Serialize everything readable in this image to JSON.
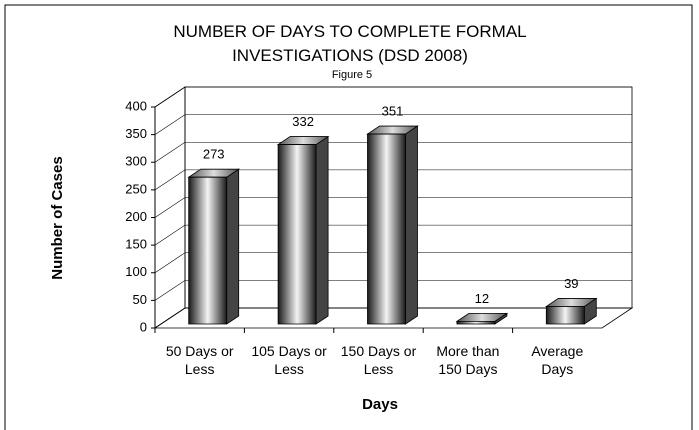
{
  "chart_data": {
    "type": "bar3d",
    "title": "NUMBER OF DAYS TO COMPLETE FORMAL INVESTIGATIONS (DSD 2008)",
    "subtitle": "Figure 5",
    "x_label": "Days",
    "y_label": "Number of Cases",
    "categories": [
      "50 Days or Less",
      "105 Days or Less",
      "150 Days or Less",
      "More than 150 Days",
      "Average Days"
    ],
    "values": [
      273,
      332,
      351,
      12,
      39
    ],
    "color": "#444444",
    "ylim": [
      0,
      400
    ],
    "yticks": [
      0,
      50,
      100,
      150,
      200,
      250,
      300,
      350,
      400
    ],
    "grid": true
  }
}
